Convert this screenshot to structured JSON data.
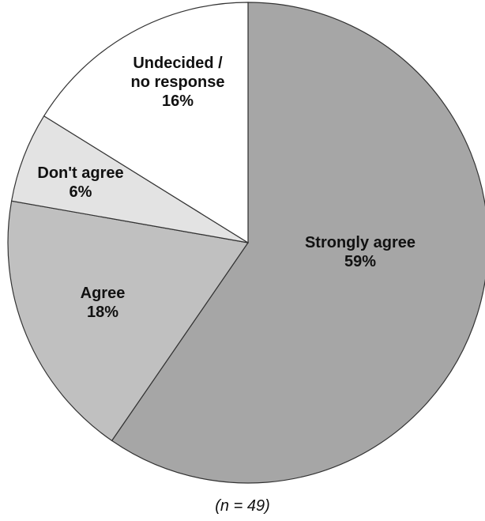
{
  "chart_data": {
    "type": "pie",
    "slices": [
      {
        "label_lines": [
          "Strongly agree"
        ],
        "value": 59,
        "value_label": "59%",
        "color": "#a6a6a6"
      },
      {
        "label_lines": [
          "Agree"
        ],
        "value": 18,
        "value_label": "18%",
        "color": "#c0c0c0"
      },
      {
        "label_lines": [
          "Don't agree"
        ],
        "value": 6,
        "value_label": "6%",
        "color": "#e3e3e3"
      },
      {
        "label_lines": [
          "Undecided /",
          "no response"
        ],
        "value": 16,
        "value_label": "16%",
        "color": "#ffffff"
      }
    ],
    "start_angle_deg": 0,
    "direction": "clockwise",
    "edge_color": "#333333",
    "note": "(n = 49)"
  }
}
